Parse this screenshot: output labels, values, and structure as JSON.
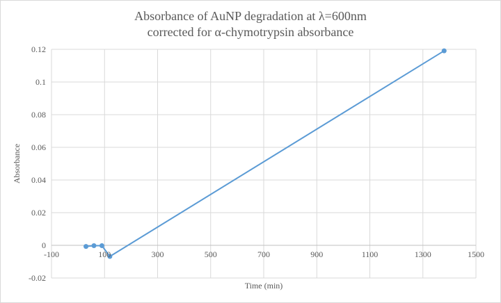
{
  "chart_data": {
    "type": "scatter",
    "title": [
      "Absorbance of AuNP degradation at λ=600nm",
      "corrected for α-chymotrypsin absorbance"
    ],
    "xlabel": "Time  (min)",
    "ylabel": "Absorbance",
    "xlim": [
      -100,
      1500
    ],
    "ylim": [
      -0.02,
      0.12
    ],
    "x_ticks": [
      -100,
      100,
      300,
      500,
      700,
      900,
      1100,
      1300,
      1500
    ],
    "y_ticks": [
      -0.02,
      0,
      0.02,
      0.04,
      0.06,
      0.08,
      0.1,
      0.12
    ],
    "x_tick_labels": [
      "-100",
      "100",
      "300",
      "500",
      "700",
      "900",
      "1100",
      "1300",
      "1500"
    ],
    "y_tick_labels": [
      "-0.02",
      "0",
      "0.02",
      "0.04",
      "0.06",
      "0.08",
      "0.1",
      "0.12"
    ],
    "grid": true,
    "line_color": "#5b9bd5",
    "grid_color": "#d9d9d9",
    "series": [
      {
        "x": [
          30,
          60,
          90,
          120,
          1380
        ],
        "y": [
          -0.0007,
          -0.0002,
          -0.0002,
          -0.0068,
          0.1191
        ]
      }
    ]
  }
}
